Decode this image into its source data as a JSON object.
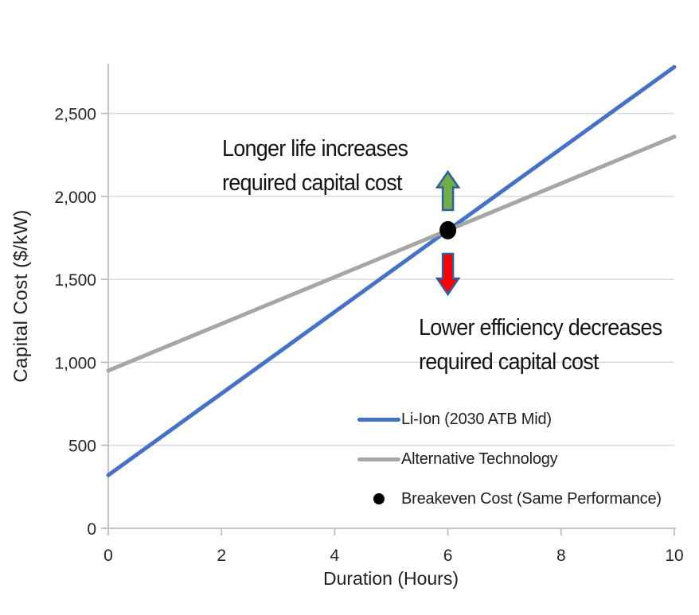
{
  "chart_data": {
    "type": "line",
    "title": "",
    "xlabel": "Duration (Hours)",
    "ylabel": "Capital Cost ($/kW)",
    "xlim": [
      0,
      10
    ],
    "ylim": [
      0,
      2800
    ],
    "xticks": [
      0,
      2,
      4,
      6,
      8,
      10
    ],
    "xtick_labels": [
      "0",
      "2",
      "4",
      "6",
      "8",
      "10"
    ],
    "yticks": [
      0,
      500,
      1000,
      1500,
      2000,
      2500
    ],
    "ytick_labels": [
      "0",
      "500",
      "1,000",
      "1,500",
      "2,000",
      "2,500"
    ],
    "grid": "horizontal-only",
    "legend_position": "inside-lower-right",
    "series": [
      {
        "name": "Li-Ion (2030 ATB Mid)",
        "color": "#4472c4",
        "x": [
          0,
          10
        ],
        "y": [
          320,
          2780
        ]
      },
      {
        "name": "Alternative Technology",
        "color": "#a6a6a6",
        "x": [
          0,
          10
        ],
        "y": [
          950,
          2360
        ]
      }
    ],
    "points": [
      {
        "name": "Breakeven Cost (Same Performance)",
        "color": "#000000",
        "x": 6,
        "y": 1796
      }
    ]
  },
  "annotations": {
    "longer_life": {
      "line1": "Longer life increases",
      "line2": "required capital cost"
    },
    "lower_efficiency": {
      "line1": "Lower efficiency decreases",
      "line2": "required capital cost"
    },
    "up_arrow": {
      "meaning": "increase",
      "fill": "#70ad47",
      "outline": "#2e5fa3"
    },
    "down_arrow": {
      "meaning": "decrease",
      "fill": "#ff0000",
      "outline": "#2e5fa3"
    }
  },
  "style": {
    "background": "#ffffff",
    "gridline_color": "#d9d9d9",
    "axis_color": "#bdbdbd",
    "text_color": "#262626"
  }
}
